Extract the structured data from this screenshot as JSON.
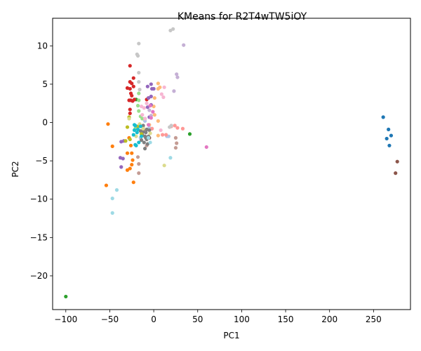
{
  "chart_data": {
    "type": "scatter",
    "title": "KMeans for R2T4wTW5iOY",
    "xlabel": "PC1",
    "ylabel": "PC2",
    "xlim": [
      -115,
      292
    ],
    "ylim": [
      -24.4,
      13.6
    ],
    "xticks": [
      -100,
      -50,
      0,
      50,
      100,
      150,
      200,
      250
    ],
    "yticks": [
      -20,
      -15,
      -10,
      -5,
      0,
      5,
      10
    ],
    "xtick_labels": [
      "−100",
      "−50",
      "0",
      "50",
      "100",
      "150",
      "200",
      "250"
    ],
    "ytick_labels": [
      "−20",
      "−15",
      "−10",
      "−5",
      "0",
      "5",
      "10"
    ],
    "grid": false,
    "series": [
      {
        "color": "#1f77b4",
        "points": [
          [
            261,
            0.7
          ],
          [
            267,
            -0.9
          ],
          [
            270,
            -1.7
          ],
          [
            265,
            -2.1
          ],
          [
            268,
            -3.0
          ]
        ]
      },
      {
        "color": "#8c564b",
        "points": [
          [
            277,
            -5.1
          ],
          [
            275,
            -6.6
          ],
          [
            -5,
            -2.0
          ],
          [
            -12,
            -1.0
          ]
        ]
      },
      {
        "color": "#2ca02c",
        "points": [
          [
            -100,
            -22.7
          ],
          [
            41,
            -1.5
          ],
          [
            -20,
            3.0
          ],
          [
            -10,
            0.5
          ]
        ]
      },
      {
        "color": "#ff7f0e",
        "points": [
          [
            -52,
            -0.2
          ],
          [
            -47,
            -3.1
          ],
          [
            -54,
            -8.2
          ],
          [
            -23,
            -7.8
          ],
          [
            -27,
            -6.0
          ],
          [
            -25,
            -5.5
          ],
          [
            -24,
            -4.9
          ],
          [
            -25,
            -4.0
          ],
          [
            -30,
            -4.0
          ],
          [
            -26,
            -3.0
          ],
          [
            -28,
            -2.0
          ],
          [
            -30,
            -6.2
          ]
        ]
      },
      {
        "color": "#d62728",
        "points": [
          [
            -27,
            7.4
          ],
          [
            -23,
            5.8
          ],
          [
            -27,
            5.3
          ],
          [
            -25,
            5.1
          ],
          [
            -23,
            4.7
          ],
          [
            -30,
            4.5
          ],
          [
            -27,
            4.4
          ],
          [
            -26,
            3.8
          ],
          [
            -25,
            3.5
          ],
          [
            -28,
            2.9
          ],
          [
            -24,
            2.8
          ],
          [
            -26,
            2.9
          ],
          [
            -22,
            3.0
          ],
          [
            -27,
            1.7
          ],
          [
            -27,
            1.2
          ],
          [
            -8,
            3.0
          ],
          [
            -6,
            3.2
          ]
        ]
      },
      {
        "color": "#aec7e8",
        "points": [
          [
            17,
            -1.8
          ],
          [
            15,
            -1.8
          ],
          [
            -5,
            -0.7
          ],
          [
            -2,
            -0.8
          ],
          [
            -10,
            0.2
          ],
          [
            -15,
            -2.0
          ]
        ]
      },
      {
        "color": "#ffbb78",
        "points": [
          [
            5,
            5.1
          ],
          [
            7,
            4.6
          ],
          [
            5,
            4.4
          ],
          [
            1,
            3.2
          ],
          [
            0,
            2.1
          ],
          [
            5,
            0.2
          ],
          [
            1,
            1.0
          ],
          [
            -5,
            -0.3
          ],
          [
            5,
            -1.7
          ]
        ]
      },
      {
        "color": "#98df8a",
        "points": [
          [
            -17,
            3.8
          ],
          [
            -17,
            2.9
          ],
          [
            -18,
            2.2
          ],
          [
            -17,
            1.5
          ],
          [
            -15,
            0.8
          ],
          [
            -13,
            0.5
          ],
          [
            -21,
            -0.8
          ]
        ]
      },
      {
        "color": "#ff9896",
        "points": [
          [
            27,
            -0.7
          ],
          [
            33,
            -0.8
          ],
          [
            20,
            -0.5
          ],
          [
            24,
            -0.4
          ],
          [
            14,
            -1.6
          ],
          [
            10,
            -1.6
          ],
          [
            -2,
            -0.8
          ]
        ]
      },
      {
        "color": "#9467bd",
        "points": [
          [
            -3,
            5.0
          ],
          [
            -7,
            4.7
          ],
          [
            -2,
            4.4
          ],
          [
            0,
            4.4
          ],
          [
            -3,
            3.4
          ],
          [
            -6,
            3.2
          ],
          [
            -3,
            2.3
          ],
          [
            -7,
            2.0
          ],
          [
            -5,
            0.7
          ],
          [
            -37,
            -2.5
          ],
          [
            -34,
            -2.4
          ],
          [
            -35,
            -4.7
          ],
          [
            -38,
            -4.6
          ],
          [
            -37,
            -5.8
          ]
        ]
      },
      {
        "color": "#c5b0d5",
        "points": [
          [
            34,
            10.1
          ],
          [
            26,
            6.3
          ],
          [
            27,
            5.9
          ],
          [
            23,
            4.1
          ],
          [
            -5,
            1.6
          ],
          [
            -3,
            0.9
          ]
        ]
      },
      {
        "color": "#c49c94",
        "points": [
          [
            25,
            -2.0
          ],
          [
            26,
            -2.7
          ],
          [
            25,
            -3.3
          ],
          [
            -17,
            -5.4
          ],
          [
            -17,
            -6.6
          ],
          [
            -18,
            -4.5
          ],
          [
            -8,
            -3.0
          ]
        ]
      },
      {
        "color": "#e377c2",
        "points": [
          [
            60,
            -3.2
          ],
          [
            -4,
            2.2
          ],
          [
            -1,
            1.4
          ],
          [
            -3,
            0.6
          ],
          [
            -6,
            -0.3
          ]
        ]
      },
      {
        "color": "#f7b6d2",
        "points": [
          [
            -14,
            2.1
          ],
          [
            -11,
            1.9
          ],
          [
            -13,
            1.0
          ],
          [
            -10,
            0.5
          ],
          [
            -8,
            2.5
          ],
          [
            12,
            4.6
          ],
          [
            9,
            3.7
          ],
          [
            11,
            3.3
          ],
          [
            8,
            -1.0
          ],
          [
            -12,
            -0.7
          ]
        ]
      },
      {
        "color": "#7f7f7f",
        "points": [
          [
            -12,
            -1.2
          ],
          [
            -10,
            -1.8
          ],
          [
            -8,
            -2.2
          ],
          [
            -11,
            -2.6
          ],
          [
            -9,
            -1.3
          ],
          [
            -6,
            -1.8
          ],
          [
            -13,
            -1.6
          ],
          [
            -7,
            -2.8
          ],
          [
            -10,
            -3.4
          ],
          [
            -14,
            -2.3
          ],
          [
            -5,
            -1.0
          ],
          [
            -12,
            -0.4
          ],
          [
            -8,
            -0.9
          ],
          [
            -15,
            -1.1
          ],
          [
            -9,
            -2.0
          ]
        ]
      },
      {
        "color": "#c7c7c7",
        "points": [
          [
            22,
            12.2
          ],
          [
            19,
            12.0
          ],
          [
            -17,
            10.3
          ],
          [
            -19,
            8.9
          ],
          [
            -18,
            8.7
          ],
          [
            -17,
            6.5
          ],
          [
            -17,
            5.3
          ],
          [
            -16,
            4.3
          ],
          [
            20,
            -0.4
          ],
          [
            18,
            -0.6
          ]
        ]
      },
      {
        "color": "#bcbd22",
        "points": [
          [
            -28,
            0.7
          ],
          [
            -30,
            -0.6
          ],
          [
            -27,
            -2.2
          ],
          [
            -32,
            -2.4
          ],
          [
            -18,
            -0.5
          ],
          [
            -14,
            -1.5
          ]
        ]
      },
      {
        "color": "#dbdb8d",
        "points": [
          [
            12,
            -5.6
          ],
          [
            -28,
            0.5
          ],
          [
            -16,
            -0.2
          ],
          [
            -12,
            -0.8
          ],
          [
            -4,
            -1.4
          ],
          [
            -20,
            -1.8
          ]
        ]
      },
      {
        "color": "#17becf",
        "points": [
          [
            -22,
            -0.3
          ],
          [
            -21,
            -0.4
          ],
          [
            -18,
            -0.9
          ],
          [
            -22,
            -1.0
          ],
          [
            -19,
            -1.3
          ],
          [
            -23,
            -1.6
          ],
          [
            -15,
            -0.5
          ],
          [
            -21,
            -2.9
          ],
          [
            -17,
            -2.6
          ],
          [
            -14,
            -1.8
          ],
          [
            -20,
            -3.0
          ]
        ]
      },
      {
        "color": "#9edae5",
        "points": [
          [
            -47,
            -9.9
          ],
          [
            -42,
            -8.8
          ],
          [
            -47,
            -11.8
          ],
          [
            19,
            -4.6
          ],
          [
            -4,
            -2.6
          ],
          [
            -6,
            -2.0
          ]
        ]
      }
    ]
  }
}
